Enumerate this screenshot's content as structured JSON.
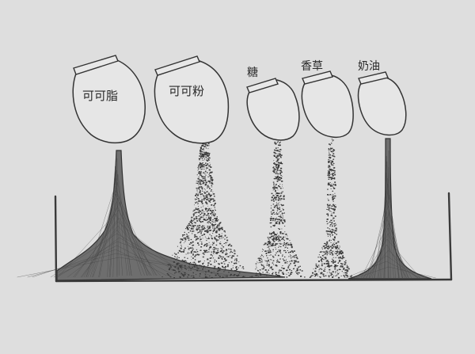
{
  "jars": [
    {
      "label": "可可脂"
    },
    {
      "label": "可可粉"
    },
    {
      "label": "糖"
    },
    {
      "label": "香草"
    },
    {
      "label": "奶油"
    }
  ]
}
